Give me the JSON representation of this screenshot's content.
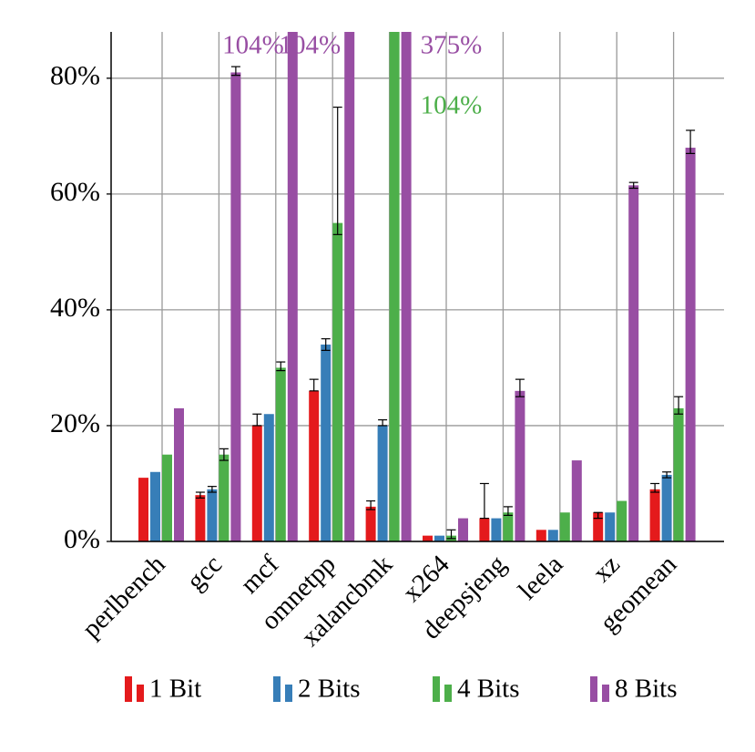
{
  "chart_data": {
    "type": "bar",
    "categories": [
      "perlbench",
      "gcc",
      "mcf",
      "omnetpp",
      "xalancbmk",
      "x264",
      "deepsjeng",
      "leela",
      "xz",
      "geomean"
    ],
    "ylim": [
      0,
      88
    ],
    "yticks": [
      {
        "value": 0,
        "label": "0%"
      },
      {
        "value": 20,
        "label": "20%"
      },
      {
        "value": 40,
        "label": "40%"
      },
      {
        "value": 60,
        "label": "60%"
      },
      {
        "value": 80,
        "label": "80%"
      }
    ],
    "grid": true,
    "series": [
      {
        "name": "1 Bit",
        "color": "#e41a1c",
        "values": [
          11,
          8,
          20,
          26,
          6,
          1,
          4,
          2,
          5,
          9
        ],
        "error_low": [
          0,
          0.5,
          0,
          0,
          0.5,
          0,
          0,
          0,
          1,
          0.5
        ],
        "error_high": [
          0,
          0.5,
          2,
          2,
          1,
          0,
          6,
          0,
          0,
          1
        ]
      },
      {
        "name": "2 Bits",
        "color": "#377eb8",
        "values": [
          12,
          9,
          22,
          34,
          20,
          1,
          4,
          2,
          5,
          11.5
        ],
        "error_low": [
          0,
          0.5,
          0,
          1,
          0,
          0,
          0,
          0,
          0,
          0.5
        ],
        "error_high": [
          0,
          0.5,
          0,
          1,
          1,
          0,
          0,
          0,
          0,
          0.5
        ]
      },
      {
        "name": "4 Bits",
        "color": "#4daf4a",
        "values": [
          15,
          15,
          30,
          55,
          104,
          1,
          5,
          5,
          7,
          23
        ],
        "error_low": [
          0,
          1,
          0.5,
          2,
          0,
          0.5,
          0.5,
          0,
          0,
          1
        ],
        "error_high": [
          0,
          1,
          1,
          20,
          0,
          1,
          1,
          0,
          0,
          2
        ],
        "value_labels": [
          null,
          null,
          null,
          null,
          "104%",
          null,
          null,
          null,
          null,
          null
        ]
      },
      {
        "name": "8 Bits",
        "color": "#984ea3",
        "values": [
          23,
          81,
          104,
          104,
          375,
          4,
          26,
          14,
          61.5,
          68
        ],
        "error_low": [
          0,
          0.5,
          0,
          0,
          0,
          0,
          1,
          0,
          0.5,
          1
        ],
        "error_high": [
          0,
          1,
          0,
          0,
          0,
          0,
          2,
          0,
          0.5,
          3
        ],
        "value_labels": [
          null,
          null,
          "104%",
          "104%",
          "375%",
          null,
          null,
          null,
          null,
          null
        ]
      }
    ]
  }
}
